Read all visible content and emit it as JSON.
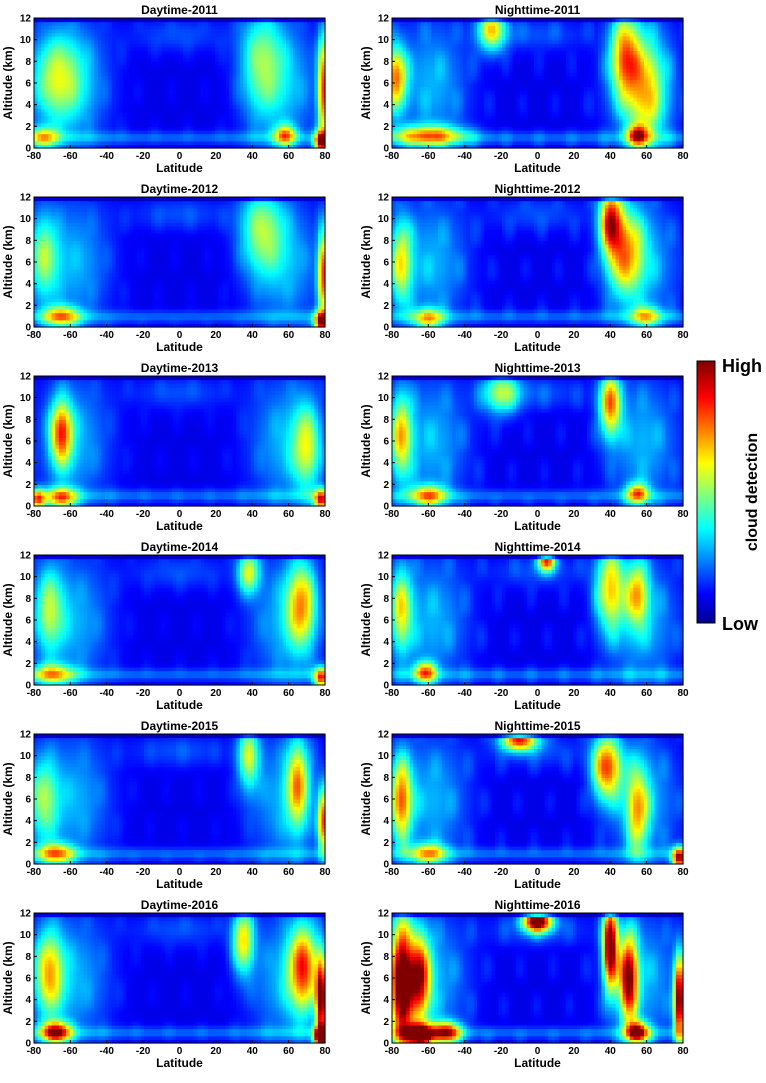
{
  "chart_data": {
    "type": "heatmap",
    "x_label": "Latitude",
    "y_label": "Altitude (km)",
    "x_range": [
      -80,
      80
    ],
    "y_range": [
      0,
      12
    ],
    "x_ticks": [
      -80,
      -60,
      -40,
      -20,
      0,
      20,
      40,
      60,
      80
    ],
    "y_ticks": [
      0,
      2,
      4,
      6,
      8,
      10,
      12
    ],
    "colormap": "jet",
    "colorbar": {
      "title": "cloud detection",
      "high_label": "High",
      "low_label": "Low"
    },
    "panels": [
      {
        "title": "Daytime-2011",
        "hotspots": [
          {
            "lat": -68,
            "alt": 6.5,
            "lat_w": 14,
            "alt_w": 4,
            "v": 0.35
          },
          {
            "lat": -75,
            "alt": 1.0,
            "lat_w": 8,
            "alt_w": 1,
            "v": 0.45
          },
          {
            "lat": 58,
            "alt": 1.2,
            "lat_w": 6,
            "alt_w": 1,
            "v": 0.5
          },
          {
            "lat": 79,
            "alt": 5.5,
            "lat_w": 3,
            "alt_w": 5,
            "v": 0.65
          },
          {
            "lat": 78,
            "alt": 0.6,
            "lat_w": 4,
            "alt_w": 1,
            "v": 0.7
          },
          {
            "lat": 45,
            "alt": 8.0,
            "lat_w": 12,
            "alt_w": 5,
            "v": 0.32
          }
        ]
      },
      {
        "title": "Nighttime-2011",
        "hotspots": [
          {
            "lat": -78,
            "alt": 6.5,
            "lat_w": 6,
            "alt_w": 3,
            "v": 0.6
          },
          {
            "lat": -60,
            "alt": 1.2,
            "lat_w": 20,
            "alt_w": 1,
            "v": 0.5
          },
          {
            "lat": -25,
            "alt": 11.0,
            "lat_w": 8,
            "alt_w": 2,
            "v": 0.5
          },
          {
            "lat": 48,
            "alt": 8.5,
            "lat_w": 8,
            "alt_w": 4,
            "v": 0.55
          },
          {
            "lat": 55,
            "alt": 1.2,
            "lat_w": 6,
            "alt_w": 1,
            "v": 0.55
          },
          {
            "lat": 60,
            "alt": 5.0,
            "lat_w": 10,
            "alt_w": 5,
            "v": 0.38
          }
        ]
      },
      {
        "title": "Daytime-2012",
        "hotspots": [
          {
            "lat": -65,
            "alt": 1.0,
            "lat_w": 10,
            "alt_w": 1,
            "v": 0.5
          },
          {
            "lat": -75,
            "alt": 6.5,
            "lat_w": 8,
            "alt_w": 4,
            "v": 0.35
          },
          {
            "lat": 45,
            "alt": 9.0,
            "lat_w": 12,
            "alt_w": 4,
            "v": 0.35
          },
          {
            "lat": 79,
            "alt": 5.0,
            "lat_w": 3,
            "alt_w": 4,
            "v": 0.65
          },
          {
            "lat": 78,
            "alt": 0.5,
            "lat_w": 4,
            "alt_w": 1,
            "v": 0.75
          }
        ]
      },
      {
        "title": "Nighttime-2012",
        "hotspots": [
          {
            "lat": -75,
            "alt": 6.0,
            "lat_w": 6,
            "alt_w": 4,
            "v": 0.45
          },
          {
            "lat": -60,
            "alt": 0.8,
            "lat_w": 8,
            "alt_w": 1,
            "v": 0.45
          },
          {
            "lat": 40,
            "alt": 10.0,
            "lat_w": 6,
            "alt_w": 3,
            "v": 0.65
          },
          {
            "lat": 48,
            "alt": 7.0,
            "lat_w": 10,
            "alt_w": 4,
            "v": 0.5
          },
          {
            "lat": 60,
            "alt": 1.0,
            "lat_w": 8,
            "alt_w": 1,
            "v": 0.4
          }
        ]
      },
      {
        "title": "Daytime-2013",
        "hotspots": [
          {
            "lat": -65,
            "alt": 6.8,
            "lat_w": 6,
            "alt_w": 3,
            "v": 0.6
          },
          {
            "lat": -65,
            "alt": 0.8,
            "lat_w": 8,
            "alt_w": 1,
            "v": 0.55
          },
          {
            "lat": -78,
            "alt": 0.6,
            "lat_w": 4,
            "alt_w": 1,
            "v": 0.6
          },
          {
            "lat": 70,
            "alt": 5.5,
            "lat_w": 8,
            "alt_w": 4,
            "v": 0.38
          },
          {
            "lat": 78,
            "alt": 0.6,
            "lat_w": 4,
            "alt_w": 1,
            "v": 0.7
          }
        ]
      },
      {
        "title": "Nighttime-2013",
        "hotspots": [
          {
            "lat": -75,
            "alt": 6.5,
            "lat_w": 6,
            "alt_w": 4,
            "v": 0.5
          },
          {
            "lat": -60,
            "alt": 1.0,
            "lat_w": 10,
            "alt_w": 1,
            "v": 0.5
          },
          {
            "lat": -20,
            "alt": 10.5,
            "lat_w": 10,
            "alt_w": 2,
            "v": 0.4
          },
          {
            "lat": 40,
            "alt": 9.5,
            "lat_w": 6,
            "alt_w": 3,
            "v": 0.6
          },
          {
            "lat": 55,
            "alt": 1.2,
            "lat_w": 6,
            "alt_w": 1,
            "v": 0.55
          }
        ]
      },
      {
        "title": "Daytime-2014",
        "hotspots": [
          {
            "lat": -70,
            "alt": 1.0,
            "lat_w": 12,
            "alt_w": 1,
            "v": 0.45
          },
          {
            "lat": -72,
            "alt": 7.0,
            "lat_w": 8,
            "alt_w": 4,
            "v": 0.35
          },
          {
            "lat": 38,
            "alt": 10.5,
            "lat_w": 6,
            "alt_w": 2,
            "v": 0.45
          },
          {
            "lat": 67,
            "alt": 7.5,
            "lat_w": 8,
            "alt_w": 4,
            "v": 0.5
          },
          {
            "lat": 78,
            "alt": 0.7,
            "lat_w": 4,
            "alt_w": 1,
            "v": 0.65
          }
        ]
      },
      {
        "title": "Nighttime-2014",
        "hotspots": [
          {
            "lat": -75,
            "alt": 7.0,
            "lat_w": 6,
            "alt_w": 4,
            "v": 0.45
          },
          {
            "lat": -62,
            "alt": 1.2,
            "lat_w": 6,
            "alt_w": 1,
            "v": 0.55
          },
          {
            "lat": 5,
            "alt": 11.5,
            "lat_w": 5,
            "alt_w": 1,
            "v": 0.65
          },
          {
            "lat": 40,
            "alt": 9.0,
            "lat_w": 8,
            "alt_w": 4,
            "v": 0.5
          },
          {
            "lat": 55,
            "alt": 8.5,
            "lat_w": 6,
            "alt_w": 3,
            "v": 0.45
          }
        ]
      },
      {
        "title": "Daytime-2015",
        "hotspots": [
          {
            "lat": -68,
            "alt": 1.0,
            "lat_w": 10,
            "alt_w": 1,
            "v": 0.5
          },
          {
            "lat": -75,
            "alt": 6.0,
            "lat_w": 8,
            "alt_w": 4,
            "v": 0.35
          },
          {
            "lat": 38,
            "alt": 10.0,
            "lat_w": 6,
            "alt_w": 3,
            "v": 0.42
          },
          {
            "lat": 65,
            "alt": 7.5,
            "lat_w": 6,
            "alt_w": 4,
            "v": 0.5
          },
          {
            "lat": 79,
            "alt": 4.0,
            "lat_w": 3,
            "alt_w": 3,
            "v": 0.65
          }
        ]
      },
      {
        "title": "Nighttime-2015",
        "hotspots": [
          {
            "lat": -75,
            "alt": 6.0,
            "lat_w": 6,
            "alt_w": 4,
            "v": 0.6
          },
          {
            "lat": -10,
            "alt": 11.5,
            "lat_w": 10,
            "alt_w": 1,
            "v": 0.7
          },
          {
            "lat": 38,
            "alt": 9.0,
            "lat_w": 8,
            "alt_w": 3,
            "v": 0.65
          },
          {
            "lat": 55,
            "alt": 5.0,
            "lat_w": 6,
            "alt_w": 4,
            "v": 0.45
          },
          {
            "lat": -60,
            "alt": 1.0,
            "lat_w": 10,
            "alt_w": 1,
            "v": 0.45
          },
          {
            "lat": 78,
            "alt": 0.6,
            "lat_w": 4,
            "alt_w": 1,
            "v": 0.8
          }
        ]
      },
      {
        "title": "Daytime-2016",
        "hotspots": [
          {
            "lat": -68,
            "alt": 1.0,
            "lat_w": 8,
            "alt_w": 1,
            "v": 0.75
          },
          {
            "lat": -72,
            "alt": 6.5,
            "lat_w": 8,
            "alt_w": 4,
            "v": 0.5
          },
          {
            "lat": 35,
            "alt": 9.5,
            "lat_w": 6,
            "alt_w": 3,
            "v": 0.5
          },
          {
            "lat": 68,
            "alt": 7.0,
            "lat_w": 8,
            "alt_w": 4,
            "v": 0.62
          },
          {
            "lat": 78,
            "alt": 4.0,
            "lat_w": 3,
            "alt_w": 4,
            "v": 0.85
          },
          {
            "lat": 78,
            "alt": 0.6,
            "lat_w": 4,
            "alt_w": 1,
            "v": 0.9
          }
        ]
      },
      {
        "title": "Nighttime-2016",
        "hotspots": [
          {
            "lat": -75,
            "alt": 5.5,
            "lat_w": 6,
            "alt_w": 6,
            "v": 0.95
          },
          {
            "lat": -65,
            "alt": 0.8,
            "lat_w": 8,
            "alt_w": 1,
            "v": 0.95
          },
          {
            "lat": -65,
            "alt": 6.0,
            "lat_w": 6,
            "alt_w": 4,
            "v": 0.7
          },
          {
            "lat": 0,
            "alt": 11.3,
            "lat_w": 8,
            "alt_w": 1,
            "v": 0.95
          },
          {
            "lat": 40,
            "alt": 9.0,
            "lat_w": 4,
            "alt_w": 4,
            "v": 0.95
          },
          {
            "lat": 50,
            "alt": 6.0,
            "lat_w": 5,
            "alt_w": 4,
            "v": 0.8
          },
          {
            "lat": 55,
            "alt": 1.0,
            "lat_w": 6,
            "alt_w": 1,
            "v": 0.8
          },
          {
            "lat": 78,
            "alt": 4.0,
            "lat_w": 3,
            "alt_w": 4,
            "v": 0.9
          },
          {
            "lat": -50,
            "alt": 1.0,
            "lat_w": 8,
            "alt_w": 1,
            "v": 0.7
          }
        ]
      }
    ]
  }
}
